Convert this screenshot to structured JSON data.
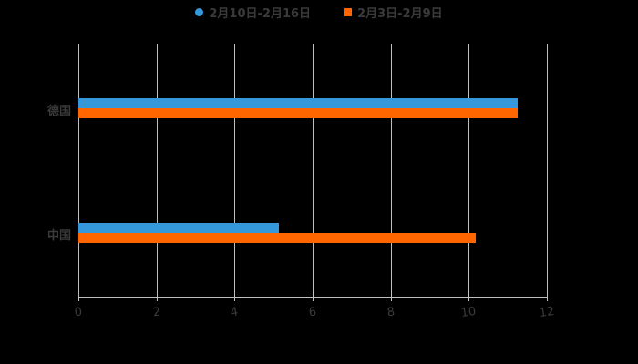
{
  "chart_data": {
    "type": "bar",
    "orientation": "horizontal",
    "categories": [
      "德国",
      "中国"
    ],
    "series": [
      {
        "name": "2月10日-2月16日",
        "color": "#3498db",
        "values": [
          11.25,
          5.14
        ]
      },
      {
        "name": "2月3日-2月9日",
        "color": "#ff6600",
        "values": [
          11.25,
          10.19
        ]
      }
    ],
    "title": "",
    "xlabel": "",
    "ylabel": "",
    "xlim": [
      0,
      12
    ],
    "xticks": [
      "0",
      "2",
      "4",
      "6",
      "8",
      "10",
      "12"
    ],
    "grid": true,
    "legend_position": "top"
  },
  "legend": [
    {
      "label": "2月10日-2月16日",
      "color": "#3498db",
      "shape": "circle"
    },
    {
      "label": "2月3日-2月9日",
      "color": "#ff6600",
      "shape": "square"
    }
  ]
}
